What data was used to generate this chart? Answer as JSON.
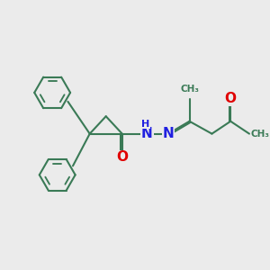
{
  "bg_color": "#ebebeb",
  "bond_color": "#3a7a56",
  "bond_width": 1.5,
  "dbo": 0.055,
  "atom_colors": {
    "O": "#e00000",
    "N": "#2020e0",
    "C": "#3a7a56"
  },
  "fig_w": 3.0,
  "fig_h": 3.0,
  "dpi": 100,
  "xlim": [
    0,
    10
  ],
  "ylim": [
    0,
    10
  ]
}
